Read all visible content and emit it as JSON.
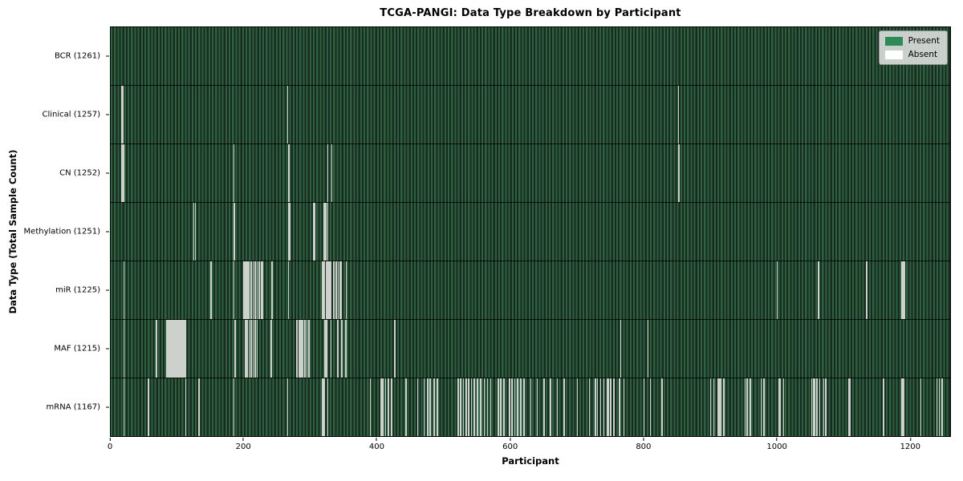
{
  "title": "TCGA-PANGI: Data Type Breakdown by Participant",
  "x_axis_label": "Participant",
  "y_axis_label": "Data Type (Total Sample Count)",
  "colors": {
    "present": "#2e8b57",
    "absent": "#ffffff",
    "heatmap_stripe_light": "#305f42",
    "heatmap_stripe_dark": "#152c1f",
    "absent_line": "#ccd1cc",
    "legend_background": "#d9dcd9"
  },
  "chart_data": {
    "type": "heatmap",
    "title": "TCGA-PANGI: Data Type Breakdown by Participant",
    "xlabel": "Participant",
    "ylabel": "Data Type (Total Sample Count)",
    "x_axis": {
      "ticks": [
        0,
        200,
        400,
        600,
        800,
        1000,
        1200
      ],
      "range": [
        0,
        1261
      ]
    },
    "legend": [
      {
        "label": "Present",
        "color": "#2e8b57"
      },
      {
        "label": "Absent",
        "color": "#ffffff"
      }
    ],
    "legend_position": "upper right",
    "grid": false,
    "rows": [
      {
        "label": "BCR",
        "total": 1261,
        "absent": []
      },
      {
        "label": "Clinical",
        "total": 1257,
        "absent": [
          16,
          17,
          265,
          852
        ]
      },
      {
        "label": "CN",
        "total": 1252,
        "absent": [
          16,
          17,
          18,
          184,
          267,
          325,
          331,
          852,
          853
        ]
      },
      {
        "label": "Methylation",
        "total": 1251,
        "absent": [
          124,
          126,
          185,
          267,
          268,
          304,
          305,
          320,
          322,
          325
        ]
      },
      {
        "label": "miR",
        "total": 1225,
        "absent": [
          19,
          150,
          184,
          199,
          201,
          203,
          205,
          207,
          210,
          213,
          216,
          219,
          222,
          225,
          227,
          241,
          266,
          317,
          318,
          320,
          323,
          326,
          328,
          330,
          334,
          338,
          341,
          343,
          345,
          353,
          1000,
          1062,
          1135,
          1188,
          1190,
          1192
        ]
      },
      {
        "label": "MAF",
        "total": 1215,
        "absent": [
          19,
          68,
          83,
          84,
          86,
          88,
          90,
          92,
          93,
          95,
          97,
          99,
          101,
          103,
          105,
          107,
          109,
          111,
          112,
          186,
          201,
          202,
          204,
          207,
          210,
          213,
          216,
          219,
          240,
          279,
          282,
          285,
          286,
          288,
          291,
          294,
          297,
          321,
          323,
          330,
          340,
          346,
          352,
          426,
          765,
          806
        ]
      },
      {
        "label": "mRNA",
        "total": 1167,
        "absent": [
          19,
          56,
          112,
          132,
          184,
          265,
          317,
          320,
          325,
          389,
          405,
          408,
          412,
          416,
          421,
          443,
          460,
          470,
          475,
          479,
          485,
          490,
          521,
          525,
          529,
          533,
          537,
          541,
          545,
          550,
          555,
          560,
          565,
          570,
          581,
          585,
          590,
          598,
          602,
          606,
          610,
          615,
          620,
          630,
          640,
          650,
          660,
          670,
          680,
          700,
          718,
          727,
          730,
          735,
          740,
          745,
          747,
          750,
          755,
          763,
          770,
          800,
          810,
          827,
          900,
          905,
          911,
          913,
          915,
          920,
          952,
          955,
          960,
          976,
          980,
          1003,
          1005,
          1010,
          1052,
          1055,
          1056,
          1060,
          1064,
          1070,
          1073,
          1108,
          1110,
          1160,
          1188,
          1190,
          1216,
          1240,
          1244,
          1248
        ]
      }
    ],
    "row_label_format": "{label} ({total})"
  }
}
